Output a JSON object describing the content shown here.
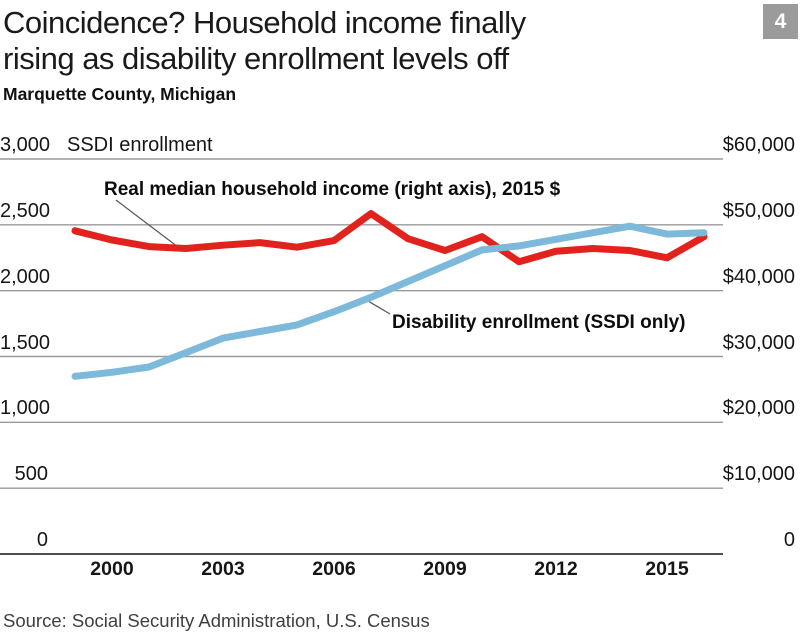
{
  "header": {
    "title_line1": "Coincidence? Household income finally",
    "title_line2": "rising as disability enrollment levels off",
    "subtitle": "Marquette County, Michigan",
    "badge": "4"
  },
  "source": "Source: Social Security Administration, U.S. Census",
  "colors": {
    "income_line": "#e2231d",
    "enrollment_line": "#7cb9da",
    "gridline": "#9a9a9a",
    "zero_axis": "#4f4f4f",
    "badge_bg": "#9b9b9b",
    "leader_line": "#555555"
  },
  "chart_data": {
    "type": "line",
    "title": "Coincidence? Household income finally rising as disability enrollment levels off",
    "subtitle": "Marquette County, Michigan",
    "left_axis_title": "SSDI enrollment",
    "left_axis_range": [
      0,
      3000
    ],
    "right_axis_range": [
      0,
      60000
    ],
    "grid": true,
    "left_ticks": [
      {
        "value": 3000,
        "label": "3,000"
      },
      {
        "value": 2500,
        "label": "2,500"
      },
      {
        "value": 2000,
        "label": "2,000"
      },
      {
        "value": 1500,
        "label": "1,500"
      },
      {
        "value": 1000,
        "label": "1,000"
      },
      {
        "value": 500,
        "label": "500"
      },
      {
        "value": 0,
        "label": "0"
      }
    ],
    "right_ticks": [
      {
        "value": 60000,
        "label": "$60,000"
      },
      {
        "value": 50000,
        "label": "$50,000"
      },
      {
        "value": 40000,
        "label": "$40,000"
      },
      {
        "value": 30000,
        "label": "$30,000"
      },
      {
        "value": 20000,
        "label": "$20,000"
      },
      {
        "value": 10000,
        "label": "$10,000"
      },
      {
        "value": 0,
        "label": "0"
      }
    ],
    "x_tick_years": [
      2000,
      2003,
      2006,
      2009,
      2012,
      2015
    ],
    "years": [
      1999,
      2000,
      2001,
      2002,
      2003,
      2004,
      2005,
      2006,
      2007,
      2008,
      2009,
      2010,
      2011,
      2012,
      2013,
      2014,
      2015,
      2016
    ],
    "series": [
      {
        "name": "income",
        "label": "Real median household income (right axis), 2015 $",
        "axis": "right",
        "values": [
          49100,
          47700,
          46700,
          46400,
          46900,
          47300,
          46600,
          47600,
          51700,
          47900,
          46100,
          48200,
          44400,
          46000,
          46400,
          46100,
          45000,
          48200
        ]
      },
      {
        "name": "enrollment",
        "label": "Disability enrollment (SSDI only)",
        "axis": "left",
        "values": [
          1350,
          1380,
          1420,
          1530,
          1640,
          1690,
          1740,
          1840,
          1950,
          2070,
          2190,
          2310,
          2340,
          2390,
          2440,
          2490,
          2430,
          2440
        ]
      }
    ]
  }
}
